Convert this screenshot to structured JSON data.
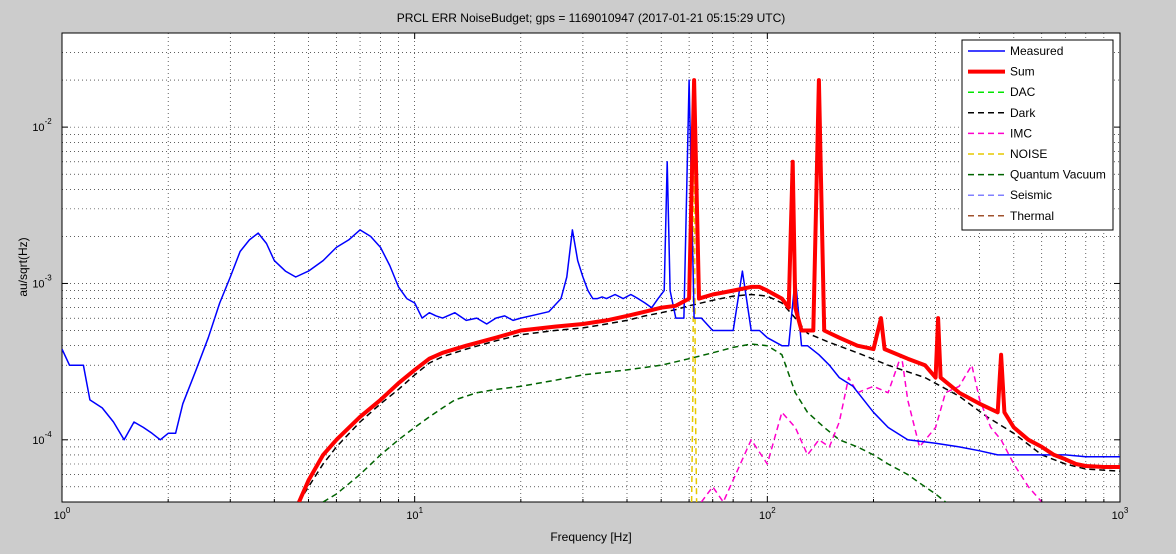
{
  "chart_data": {
    "type": "line",
    "title": "PRCL ERR NoiseBudget; gps = 1169010947 (2017-01-21 05:15:29 UTC)",
    "xlabel": "Frequency [Hz]",
    "ylabel": "au/sqrt(Hz)",
    "xscale": "log",
    "yscale": "log",
    "xlim": [
      1,
      1000
    ],
    "ylim": [
      4e-05,
      0.04
    ],
    "grid": true,
    "legend_position": "top-right",
    "x_ticks": [
      {
        "base": "10",
        "exp": "0",
        "value": 1
      },
      {
        "base": "10",
        "exp": "1",
        "value": 10
      },
      {
        "base": "10",
        "exp": "2",
        "value": 100
      },
      {
        "base": "10",
        "exp": "3",
        "value": 1000
      }
    ],
    "y_ticks": [
      {
        "base": "10",
        "exp": "-4",
        "value": 0.0001
      },
      {
        "base": "10",
        "exp": "-3",
        "value": 0.001
      },
      {
        "base": "10",
        "exp": "-2",
        "value": 0.01
      }
    ],
    "series": [
      {
        "name": "Measured",
        "color": "#0000ff",
        "style": "solid",
        "width": 1.5,
        "points": [
          [
            1,
            0.00038
          ],
          [
            1.05,
            0.0003
          ],
          [
            1.15,
            0.0003
          ],
          [
            1.2,
            0.00018
          ],
          [
            1.3,
            0.00016
          ],
          [
            1.4,
            0.00013
          ],
          [
            1.5,
            0.0001
          ],
          [
            1.6,
            0.00013
          ],
          [
            1.7,
            0.00012
          ],
          [
            1.8,
            0.00011
          ],
          [
            1.9,
            0.0001
          ],
          [
            2.0,
            0.00011
          ],
          [
            2.1,
            0.00011
          ],
          [
            2.2,
            0.00017
          ],
          [
            2.4,
            0.00028
          ],
          [
            2.6,
            0.00045
          ],
          [
            2.8,
            0.00075
          ],
          [
            3.0,
            0.0011
          ],
          [
            3.2,
            0.0016
          ],
          [
            3.4,
            0.0019
          ],
          [
            3.6,
            0.0021
          ],
          [
            3.8,
            0.0018
          ],
          [
            4.0,
            0.0014
          ],
          [
            4.3,
            0.0012
          ],
          [
            4.6,
            0.0011
          ],
          [
            5.0,
            0.0012
          ],
          [
            5.5,
            0.0014
          ],
          [
            6.0,
            0.0017
          ],
          [
            6.5,
            0.0019
          ],
          [
            7.0,
            0.0022
          ],
          [
            7.5,
            0.002
          ],
          [
            8.0,
            0.0017
          ],
          [
            8.5,
            0.0013
          ],
          [
            9.0,
            0.00095
          ],
          [
            9.5,
            0.0008
          ],
          [
            10,
            0.00075
          ],
          [
            10.5,
            0.0006
          ],
          [
            11,
            0.00065
          ],
          [
            11.5,
            0.00062
          ],
          [
            12,
            0.0006
          ],
          [
            13,
            0.00065
          ],
          [
            14,
            0.00058
          ],
          [
            15,
            0.0006
          ],
          [
            16,
            0.00055
          ],
          [
            17,
            0.0006
          ],
          [
            18,
            0.00062
          ],
          [
            19,
            0.00058
          ],
          [
            20,
            0.0006
          ],
          [
            22,
            0.00063
          ],
          [
            24,
            0.00066
          ],
          [
            26,
            0.0008
          ],
          [
            27,
            0.0011
          ],
          [
            28,
            0.0022
          ],
          [
            29,
            0.0014
          ],
          [
            30,
            0.0011
          ],
          [
            31,
            0.0009
          ],
          [
            32,
            0.0008
          ],
          [
            33,
            0.0008
          ],
          [
            34,
            0.00082
          ],
          [
            35,
            0.0008
          ],
          [
            37,
            0.00085
          ],
          [
            39,
            0.0008
          ],
          [
            41,
            0.00085
          ],
          [
            43,
            0.0008
          ],
          [
            45,
            0.00075
          ],
          [
            47,
            0.0007
          ],
          [
            49,
            0.0008
          ],
          [
            51,
            0.0009
          ],
          [
            52,
            0.006
          ],
          [
            53,
            0.0009
          ],
          [
            55,
            0.0006
          ],
          [
            58,
            0.0006
          ],
          [
            60,
            0.02
          ],
          [
            62,
            0.0006
          ],
          [
            65,
            0.0006
          ],
          [
            70,
            0.0005
          ],
          [
            75,
            0.0005
          ],
          [
            80,
            0.0005
          ],
          [
            85,
            0.0012
          ],
          [
            90,
            0.0005
          ],
          [
            95,
            0.0005
          ],
          [
            100,
            0.00045
          ],
          [
            110,
            0.0004
          ],
          [
            115,
            0.0004
          ],
          [
            120,
            0.0011
          ],
          [
            125,
            0.0004
          ],
          [
            130,
            0.0004
          ],
          [
            140,
            0.00035
          ],
          [
            150,
            0.0003
          ],
          [
            160,
            0.00025
          ],
          [
            175,
            0.00022
          ],
          [
            200,
            0.00015
          ],
          [
            220,
            0.00012
          ],
          [
            250,
            0.0001
          ],
          [
            300,
            9.5e-05
          ],
          [
            350,
            9e-05
          ],
          [
            400,
            8.5e-05
          ],
          [
            450,
            8e-05
          ],
          [
            500,
            8e-05
          ],
          [
            600,
            8e-05
          ],
          [
            700,
            8e-05
          ],
          [
            800,
            7.8e-05
          ],
          [
            900,
            7.8e-05
          ],
          [
            1000,
            7.8e-05
          ]
        ]
      },
      {
        "name": "Sum",
        "color": "#ff0000",
        "style": "solid",
        "width": 4,
        "points": [
          [
            4.7,
            4e-05
          ],
          [
            5.0,
            5.5e-05
          ],
          [
            5.5,
            8e-05
          ],
          [
            6.0,
            0.0001
          ],
          [
            7,
            0.00014
          ],
          [
            8,
            0.00018
          ],
          [
            9,
            0.00023
          ],
          [
            10,
            0.00028
          ],
          [
            11,
            0.00033
          ],
          [
            12,
            0.00036
          ],
          [
            14,
            0.0004
          ],
          [
            17,
            0.00045
          ],
          [
            20,
            0.0005
          ],
          [
            25,
            0.00053
          ],
          [
            30,
            0.00055
          ],
          [
            35,
            0.00058
          ],
          [
            40,
            0.00062
          ],
          [
            45,
            0.00066
          ],
          [
            50,
            0.0007
          ],
          [
            55,
            0.00072
          ],
          [
            60,
            0.0008
          ],
          [
            62,
            0.02
          ],
          [
            64,
            0.0008
          ],
          [
            70,
            0.00085
          ],
          [
            80,
            0.0009
          ],
          [
            90,
            0.00095
          ],
          [
            95,
            0.00095
          ],
          [
            100,
            0.0009
          ],
          [
            110,
            0.0008
          ],
          [
            115,
            0.0007
          ],
          [
            118,
            0.006
          ],
          [
            120,
            0.0007
          ],
          [
            125,
            0.0005
          ],
          [
            135,
            0.0005
          ],
          [
            140,
            0.02
          ],
          [
            145,
            0.0005
          ],
          [
            160,
            0.00045
          ],
          [
            180,
            0.0004
          ],
          [
            200,
            0.00038
          ],
          [
            210,
            0.0006
          ],
          [
            215,
            0.00038
          ],
          [
            250,
            0.00033
          ],
          [
            280,
            0.0003
          ],
          [
            300,
            0.00025
          ],
          [
            305,
            0.0006
          ],
          [
            310,
            0.00025
          ],
          [
            350,
            0.0002
          ],
          [
            400,
            0.00017
          ],
          [
            450,
            0.00015
          ],
          [
            460,
            0.00035
          ],
          [
            470,
            0.00015
          ],
          [
            500,
            0.00012
          ],
          [
            550,
            0.0001
          ],
          [
            600,
            9e-05
          ],
          [
            650,
            8e-05
          ],
          [
            700,
            7.5e-05
          ],
          [
            750,
            7e-05
          ],
          [
            800,
            6.8e-05
          ],
          [
            900,
            6.7e-05
          ],
          [
            1000,
            6.7e-05
          ]
        ]
      },
      {
        "name": "DAC",
        "color": "#00e600",
        "style": "dashed",
        "width": 1.5,
        "points": []
      },
      {
        "name": "Dark",
        "color": "#000000",
        "style": "dashed",
        "width": 1.5,
        "points": [
          [
            4.7,
            4e-05
          ],
          [
            5.0,
            5e-05
          ],
          [
            5.5,
            7e-05
          ],
          [
            6.0,
            9e-05
          ],
          [
            7,
            0.00013
          ],
          [
            8,
            0.00017
          ],
          [
            9,
            0.00021
          ],
          [
            10,
            0.00026
          ],
          [
            11,
            0.00031
          ],
          [
            12,
            0.00034
          ],
          [
            14,
            0.00038
          ],
          [
            17,
            0.00043
          ],
          [
            20,
            0.00047
          ],
          [
            25,
            0.0005
          ],
          [
            30,
            0.00052
          ],
          [
            35,
            0.00055
          ],
          [
            40,
            0.00058
          ],
          [
            45,
            0.00062
          ],
          [
            50,
            0.00065
          ],
          [
            55,
            0.00068
          ],
          [
            60,
            0.00072
          ],
          [
            70,
            0.00078
          ],
          [
            80,
            0.00083
          ],
          [
            90,
            0.00085
          ],
          [
            100,
            0.00083
          ],
          [
            110,
            0.00075
          ],
          [
            120,
            0.0006
          ],
          [
            130,
            0.00048
          ],
          [
            150,
            0.00042
          ],
          [
            180,
            0.00036
          ],
          [
            220,
            0.0003
          ],
          [
            280,
            0.00025
          ],
          [
            350,
            0.00019
          ],
          [
            420,
            0.00014
          ],
          [
            500,
            0.00011
          ],
          [
            600,
            8e-05
          ],
          [
            700,
            7e-05
          ],
          [
            800,
            6.5e-05
          ],
          [
            1000,
            6.3e-05
          ]
        ]
      },
      {
        "name": "IMC",
        "color": "#ff00cc",
        "style": "dashed",
        "width": 1.5,
        "points": [
          [
            65,
            4e-05
          ],
          [
            70,
            5e-05
          ],
          [
            75,
            4e-05
          ],
          [
            90,
            0.0001
          ],
          [
            100,
            7e-05
          ],
          [
            110,
            0.00015
          ],
          [
            120,
            0.00012
          ],
          [
            130,
            8e-05
          ],
          [
            140,
            0.0001
          ],
          [
            150,
            9e-05
          ],
          [
            160,
            0.00013
          ],
          [
            170,
            0.00025
          ],
          [
            180,
            0.0002
          ],
          [
            200,
            0.00022
          ],
          [
            220,
            0.0002
          ],
          [
            240,
            0.00035
          ],
          [
            250,
            0.00018
          ],
          [
            270,
            9e-05
          ],
          [
            300,
            0.00012
          ],
          [
            320,
            0.0002
          ],
          [
            350,
            0.00022
          ],
          [
            380,
            0.0003
          ],
          [
            400,
            0.00018
          ],
          [
            430,
            0.00012
          ],
          [
            460,
            0.0001
          ],
          [
            500,
            7e-05
          ],
          [
            550,
            5e-05
          ],
          [
            600,
            4e-05
          ]
        ]
      },
      {
        "name": "NOISE",
        "color": "#e6c800",
        "style": "dashed",
        "width": 1.5,
        "points": [
          [
            61,
            4e-05
          ],
          [
            61.5,
            0.0002
          ],
          [
            62,
            0.02
          ],
          [
            62.5,
            0.0002
          ],
          [
            63,
            4e-05
          ]
        ]
      },
      {
        "name": "Quantum Vacuum",
        "color": "#006400",
        "style": "dashed",
        "width": 1.5,
        "points": [
          [
            5.5,
            4e-05
          ],
          [
            6,
            4.5e-05
          ],
          [
            7,
            6e-05
          ],
          [
            8,
            8e-05
          ],
          [
            9,
            0.0001
          ],
          [
            10,
            0.00012
          ],
          [
            11,
            0.00014
          ],
          [
            12,
            0.00016
          ],
          [
            13,
            0.00018
          ],
          [
            15,
            0.0002
          ],
          [
            17,
            0.00021
          ],
          [
            20,
            0.00022
          ],
          [
            25,
            0.00024
          ],
          [
            30,
            0.00026
          ],
          [
            40,
            0.00028
          ],
          [
            50,
            0.0003
          ],
          [
            60,
            0.00033
          ],
          [
            70,
            0.00036
          ],
          [
            80,
            0.00039
          ],
          [
            90,
            0.00041
          ],
          [
            100,
            0.0004
          ],
          [
            110,
            0.00035
          ],
          [
            120,
            0.0002
          ],
          [
            130,
            0.00015
          ],
          [
            145,
            0.00012
          ],
          [
            160,
            0.0001
          ],
          [
            180,
            9e-05
          ],
          [
            200,
            8e-05
          ],
          [
            220,
            7e-05
          ],
          [
            250,
            6e-05
          ],
          [
            280,
            5e-05
          ],
          [
            300,
            4.5e-05
          ],
          [
            320,
            4e-05
          ]
        ]
      },
      {
        "name": "Seismic",
        "color": "#8080ff",
        "style": "dashed",
        "width": 1.5,
        "points": []
      },
      {
        "name": "Thermal",
        "color": "#a0522d",
        "style": "dashed",
        "width": 1.5,
        "points": []
      }
    ]
  }
}
